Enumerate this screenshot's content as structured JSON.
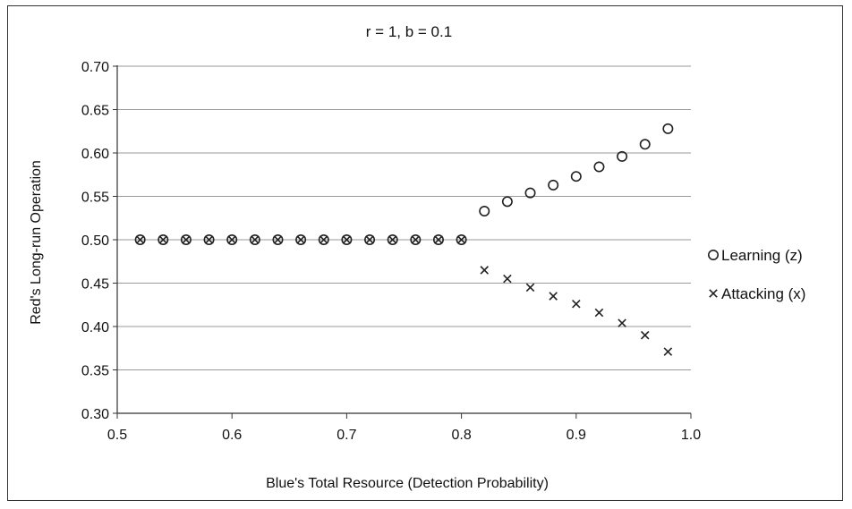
{
  "chart_data": {
    "type": "scatter",
    "title": "r = 1, b = 0.1",
    "xlabel": "Blue's Total Resource (Detection Probability)",
    "ylabel": "Red's Long-run Operation",
    "xlim": [
      0.5,
      1.0
    ],
    "ylim": [
      0.3,
      0.7
    ],
    "xticks": [
      "0.5",
      "0.6",
      "0.7",
      "0.8",
      "0.9",
      "1.0"
    ],
    "yticks": [
      "0.30",
      "0.35",
      "0.40",
      "0.45",
      "0.50",
      "0.55",
      "0.60",
      "0.65",
      "0.70"
    ],
    "grid": "horizontal",
    "legend_position": "right",
    "series": [
      {
        "name": "Learning (z)",
        "marker": "circle",
        "color": "#222222",
        "x": [
          0.52,
          0.54,
          0.56,
          0.58,
          0.6,
          0.62,
          0.64,
          0.66,
          0.68,
          0.7,
          0.72,
          0.74,
          0.76,
          0.78,
          0.8,
          0.82,
          0.84,
          0.86,
          0.88,
          0.9,
          0.92,
          0.94,
          0.96,
          0.98
        ],
        "y": [
          0.5,
          0.5,
          0.5,
          0.5,
          0.5,
          0.5,
          0.5,
          0.5,
          0.5,
          0.5,
          0.5,
          0.5,
          0.5,
          0.5,
          0.5,
          0.533,
          0.544,
          0.554,
          0.563,
          0.573,
          0.584,
          0.596,
          0.61,
          0.628
        ]
      },
      {
        "name": "Attacking (x)",
        "marker": "x",
        "color": "#222222",
        "x": [
          0.52,
          0.54,
          0.56,
          0.58,
          0.6,
          0.62,
          0.64,
          0.66,
          0.68,
          0.7,
          0.72,
          0.74,
          0.76,
          0.78,
          0.8,
          0.82,
          0.84,
          0.86,
          0.88,
          0.9,
          0.92,
          0.94,
          0.96,
          0.98
        ],
        "y": [
          0.5,
          0.5,
          0.5,
          0.5,
          0.5,
          0.5,
          0.5,
          0.5,
          0.5,
          0.5,
          0.5,
          0.5,
          0.5,
          0.5,
          0.5,
          0.465,
          0.455,
          0.445,
          0.435,
          0.426,
          0.416,
          0.404,
          0.39,
          0.371
        ]
      }
    ]
  }
}
